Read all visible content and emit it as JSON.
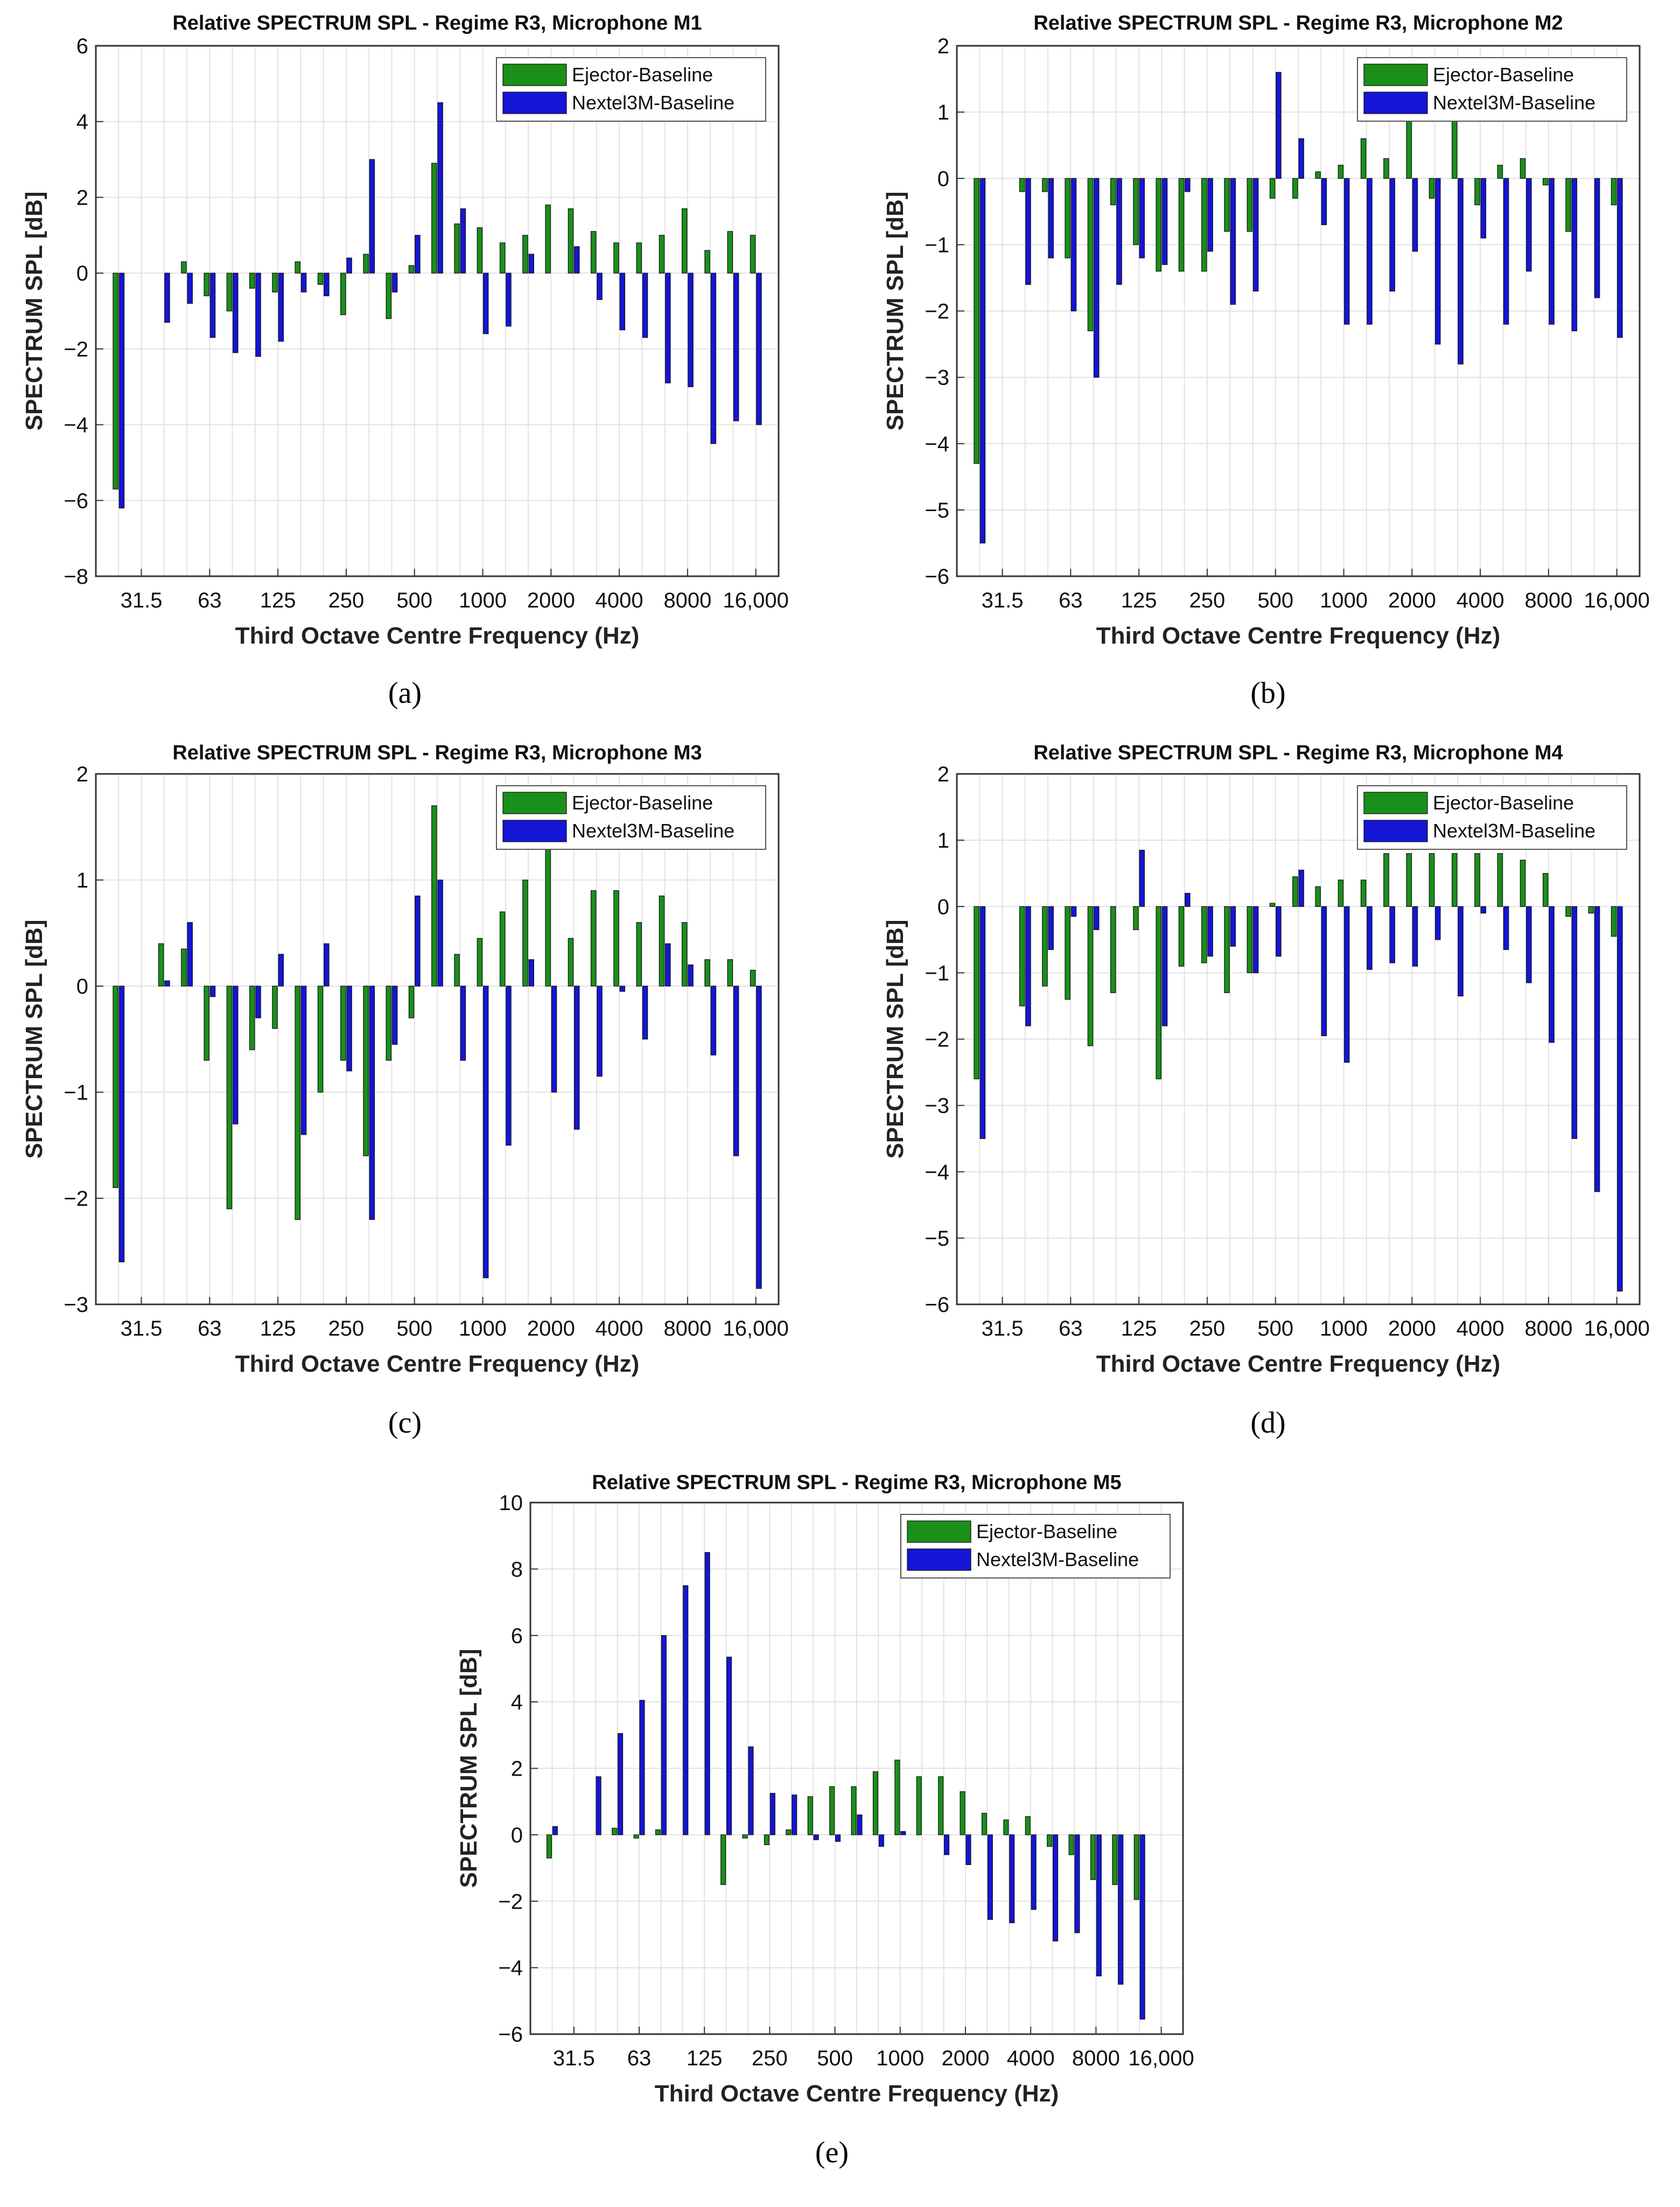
{
  "figure": {
    "panel_labels": [
      "(a)",
      "(b)",
      "(c)",
      "(d)",
      "(e)"
    ]
  },
  "colors": {
    "ejector": "#1a8f1a",
    "nextel": "#1515d6",
    "grid": "#e2e2e2",
    "axis": "#333333"
  },
  "chart_data": [
    {
      "type": "bar",
      "title": "Relative SPECTRUM SPL - Regime R3, Microphone M1",
      "xlabel": "Third Octave Centre Frequency (Hz)",
      "ylabel": "SPECTRUM SPL [dB]",
      "ylim": [
        -8,
        6
      ],
      "yticks": [
        -8,
        -6,
        -4,
        -2,
        0,
        2,
        4,
        6
      ],
      "ytick_labels": [
        "−8",
        "−6",
        "−4",
        "−2",
        "0",
        "2",
        "4",
        "6"
      ],
      "xtick_labels": [
        "31.5",
        "63",
        "125",
        "250",
        "500",
        "1000",
        "2000",
        "4000",
        "8000",
        "16,000"
      ],
      "xtick_positions": [
        2,
        5,
        8,
        11,
        14,
        17,
        20,
        23,
        26,
        29
      ],
      "n_bands": 29,
      "legend": "top-right",
      "grid": true,
      "series": [
        {
          "name": "Ejector-Baseline",
          "values": [
            -5.7,
            0,
            0,
            0.3,
            -0.6,
            -1.0,
            -0.4,
            -0.5,
            0.3,
            -0.3,
            -1.1,
            0.5,
            -1.2,
            0.2,
            2.9,
            1.3,
            1.2,
            0.8,
            1.0,
            1.8,
            1.7,
            1.1,
            0.8,
            0.8,
            1.0,
            1.7,
            0.6,
            1.1,
            1.0
          ]
        },
        {
          "name": "Nextel3M-Baseline",
          "values": [
            -6.2,
            0,
            -1.3,
            -0.8,
            -1.7,
            -2.1,
            -2.2,
            -1.8,
            -0.5,
            -0.6,
            0.4,
            3.0,
            -0.5,
            1.0,
            4.5,
            1.7,
            -1.6,
            -1.4,
            0.5,
            0,
            0.7,
            -0.7,
            -1.5,
            -1.7,
            -2.9,
            -3.0,
            -4.5,
            -3.9,
            -4.0
          ]
        }
      ]
    },
    {
      "type": "bar",
      "title": "Relative SPECTRUM SPL - Regime R3, Microphone M2",
      "xlabel": "Third Octave Centre Frequency (Hz)",
      "ylabel": "SPECTRUM SPL [dB]",
      "ylim": [
        -6,
        2
      ],
      "yticks": [
        -6,
        -5,
        -4,
        -3,
        -2,
        -1,
        0,
        1,
        2
      ],
      "ytick_labels": [
        "−6",
        "−5",
        "−4",
        "−3",
        "−2",
        "−1",
        "0",
        "1",
        "2"
      ],
      "xtick_labels": [
        "31.5",
        "63",
        "125",
        "250",
        "500",
        "1000",
        "2000",
        "4000",
        "8000",
        "16,000"
      ],
      "xtick_positions": [
        2,
        5,
        8,
        11,
        14,
        17,
        20,
        23,
        26,
        29
      ],
      "n_bands": 29,
      "legend": "top-right",
      "grid": true,
      "series": [
        {
          "name": "Ejector-Baseline",
          "values": [
            -4.3,
            0,
            -0.2,
            -0.2,
            -1.2,
            -2.3,
            -0.4,
            -1.0,
            -1.4,
            -1.4,
            -1.4,
            -0.8,
            -0.8,
            -0.3,
            -0.3,
            0.1,
            0.2,
            0.6,
            0.3,
            0.9,
            -0.3,
            1.0,
            -0.4,
            0.2,
            0.3,
            -0.1,
            -0.8,
            0,
            -0.4
          ]
        },
        {
          "name": "Nextel3M-Baseline",
          "values": [
            -5.5,
            0,
            -1.6,
            -1.2,
            -2.0,
            -3.0,
            -1.6,
            -1.2,
            -1.3,
            -0.2,
            -1.1,
            -1.9,
            -1.7,
            1.6,
            0.6,
            -0.7,
            -2.2,
            -2.2,
            -1.7,
            -1.1,
            -2.5,
            -2.8,
            -0.9,
            -2.2,
            -1.4,
            -2.2,
            -2.3,
            -1.8,
            -2.4
          ]
        }
      ]
    },
    {
      "type": "bar",
      "title": "Relative SPECTRUM SPL - Regime R3, Microphone M3",
      "xlabel": "Third Octave Centre Frequency (Hz)",
      "ylabel": "SPECTRUM SPL [dB]",
      "ylim": [
        -3,
        2
      ],
      "yticks": [
        -3,
        -2,
        -1,
        0,
        1,
        2
      ],
      "ytick_labels": [
        "−3",
        "−2",
        "−1",
        "0",
        "1",
        "2"
      ],
      "xtick_labels": [
        "31.5",
        "63",
        "125",
        "250",
        "500",
        "1000",
        "2000",
        "4000",
        "8000",
        "16,000"
      ],
      "xtick_positions": [
        2,
        5,
        8,
        11,
        14,
        17,
        20,
        23,
        26,
        29
      ],
      "n_bands": 29,
      "legend": "top-right",
      "grid": true,
      "series": [
        {
          "name": "Ejector-Baseline",
          "values": [
            -1.9,
            0,
            0.4,
            0.35,
            -0.7,
            -2.1,
            -0.6,
            -0.4,
            -2.2,
            -1.0,
            -0.7,
            -1.6,
            -0.7,
            -0.3,
            1.7,
            0.3,
            0.45,
            0.7,
            1.0,
            1.3,
            0.45,
            0.9,
            0.9,
            0.6,
            0.85,
            0.6,
            0.25,
            0.25,
            0.15
          ]
        },
        {
          "name": "Nextel3M-Baseline",
          "values": [
            -2.6,
            0,
            0.05,
            0.6,
            -0.1,
            -1.3,
            -0.3,
            0.3,
            -1.4,
            0.4,
            -0.8,
            -2.2,
            -0.55,
            0.85,
            1.0,
            -0.7,
            -2.75,
            -1.5,
            0.25,
            -1.0,
            -1.35,
            -0.85,
            -0.05,
            -0.5,
            0.4,
            0.2,
            -0.65,
            -1.6,
            -2.85
          ]
        }
      ]
    },
    {
      "type": "bar",
      "title": "Relative SPECTRUM SPL - Regime R3, Microphone M4",
      "xlabel": "Third Octave Centre Frequency (Hz)",
      "ylabel": "SPECTRUM SPL [dB]",
      "ylim": [
        -6,
        2
      ],
      "yticks": [
        -6,
        -5,
        -4,
        -3,
        -2,
        -1,
        0,
        1,
        2
      ],
      "ytick_labels": [
        "−6",
        "−5",
        "−4",
        "−3",
        "−2",
        "−1",
        "0",
        "1",
        "2"
      ],
      "xtick_labels": [
        "31.5",
        "63",
        "125",
        "250",
        "500",
        "1000",
        "2000",
        "4000",
        "8000",
        "16,000"
      ],
      "xtick_positions": [
        2,
        5,
        8,
        11,
        14,
        17,
        20,
        23,
        26,
        29
      ],
      "n_bands": 29,
      "legend": "top-right",
      "grid": true,
      "series": [
        {
          "name": "Ejector-Baseline",
          "values": [
            -2.6,
            0,
            -1.5,
            -1.2,
            -1.4,
            -2.1,
            -1.3,
            -0.35,
            -2.6,
            -0.9,
            -0.85,
            -1.3,
            -1.0,
            0.05,
            0.45,
            0.3,
            0.4,
            0.4,
            0.8,
            0.8,
            0.8,
            0.8,
            0.8,
            0.8,
            0.7,
            0.5,
            -0.15,
            -0.1,
            -0.45
          ]
        },
        {
          "name": "Nextel3M-Baseline",
          "values": [
            -3.5,
            0,
            -1.8,
            -0.65,
            -0.15,
            -0.35,
            0,
            0.85,
            -1.8,
            0.2,
            -0.75,
            -0.6,
            -1.0,
            -0.75,
            0.55,
            -1.95,
            -2.35,
            -0.95,
            -0.85,
            -0.9,
            -0.5,
            -1.35,
            -0.1,
            -0.65,
            -1.15,
            -2.05,
            -3.5,
            -4.3,
            -5.8
          ]
        }
      ]
    },
    {
      "type": "bar",
      "title": "Relative SPECTRUM SPL - Regime R3, Microphone M5",
      "xlabel": "Third Octave Centre Frequency (Hz)",
      "ylabel": "SPECTRUM SPL [dB]",
      "ylim": [
        -6,
        10
      ],
      "yticks": [
        -6,
        -4,
        -2,
        0,
        2,
        4,
        6,
        8,
        10
      ],
      "ytick_labels": [
        "−6",
        "−4",
        "−2",
        "0",
        "2",
        "4",
        "6",
        "8",
        "10"
      ],
      "xtick_labels": [
        "31.5",
        "63",
        "125",
        "250",
        "500",
        "1000",
        "2000",
        "4000",
        "8000",
        "16,000"
      ],
      "xtick_positions": [
        2,
        5,
        8,
        11,
        14,
        17,
        20,
        23,
        26,
        29
      ],
      "n_bands": 29,
      "legend": "top-right",
      "grid": true,
      "series": [
        {
          "name": "Ejector-Baseline",
          "values": [
            -0.7,
            0,
            0,
            0.2,
            -0.1,
            0.15,
            0,
            0,
            -1.5,
            -0.1,
            -0.3,
            0.15,
            1.15,
            1.45,
            1.45,
            1.9,
            2.25,
            1.75,
            1.75,
            1.3,
            0.65,
            0.45,
            0.55,
            -0.35,
            -0.6,
            -1.35,
            -1.5,
            -1.95,
            0
          ]
        },
        {
          "name": "Nextel3M-Baseline",
          "values": [
            0.25,
            0,
            1.75,
            3.05,
            4.05,
            6.0,
            7.5,
            8.5,
            5.35,
            2.65,
            1.25,
            1.2,
            -0.15,
            -0.2,
            0.6,
            -0.35,
            0.1,
            0,
            -0.6,
            -0.9,
            -2.55,
            -2.65,
            -2.25,
            -3.2,
            -2.95,
            -4.25,
            -4.5,
            -5.55,
            0
          ]
        }
      ]
    }
  ]
}
